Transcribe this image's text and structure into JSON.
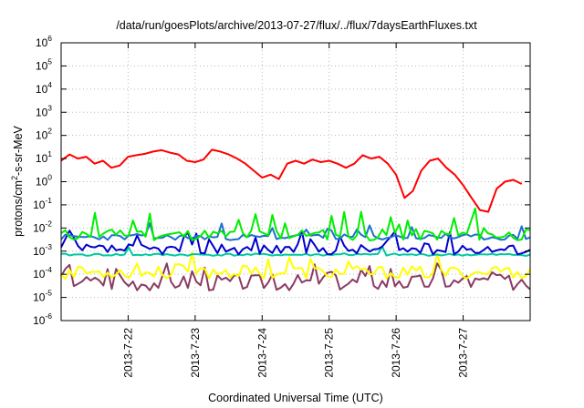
{
  "chart_data": {
    "type": "line",
    "title": "/data/run/goesPlots/archive/2013-07-27/flux/../flux/7daysEarthFluxes.txt",
    "xlabel": "Coordinated Universal Time (UTC)",
    "ylabel": "protons/cm2-s-sr-MeV",
    "y_scale": "log",
    "ylim": [
      1e-06,
      1000000.0
    ],
    "y_ticks": [
      {
        "base": "10",
        "exp": "-6",
        "value": 1e-06
      },
      {
        "base": "10",
        "exp": "-5",
        "value": 1e-05
      },
      {
        "base": "10",
        "exp": "-4",
        "value": 0.0001
      },
      {
        "base": "10",
        "exp": "-3",
        "value": 0.001
      },
      {
        "base": "10",
        "exp": "-2",
        "value": 0.01
      },
      {
        "base": "10",
        "exp": "-1",
        "value": 0.1
      },
      {
        "base": "10",
        "exp": "0",
        "value": 1
      },
      {
        "base": "10",
        "exp": "1",
        "value": 10
      },
      {
        "base": "10",
        "exp": "2",
        "value": 100
      },
      {
        "base": "10",
        "exp": "3",
        "value": 1000
      },
      {
        "base": "10",
        "exp": "4",
        "value": 10000
      },
      {
        "base": "10",
        "exp": "5",
        "value": 100000
      },
      {
        "base": "10",
        "exp": "6",
        "value": 1000000
      }
    ],
    "xlim": [
      "2013-07-21 00:00",
      "2013-07-28 00:00"
    ],
    "x_ticks": [
      {
        "label": "2013-7-22",
        "value": "2013-07-22 00:00"
      },
      {
        "label": "2013-7-23",
        "value": "2013-07-23 00:00"
      },
      {
        "label": "2013-7-24",
        "value": "2013-07-24 00:00"
      },
      {
        "label": "2013-7-25",
        "value": "2013-07-25 00:00"
      },
      {
        "label": "2013-7-26",
        "value": "2013-07-26 00:00"
      },
      {
        "label": "2013-7-27",
        "value": "2013-07-27 00:00"
      }
    ],
    "grid": true,
    "legend": "none",
    "series": [
      {
        "color": "#ff0000",
        "values": [
          [
            "2013-07-21 00:00",
            8
          ],
          [
            "2013-07-21 03:00",
            15
          ],
          [
            "2013-07-21 06:00",
            10
          ],
          [
            "2013-07-21 09:00",
            12
          ],
          [
            "2013-07-21 12:00",
            6
          ],
          [
            "2013-07-21 15:00",
            8
          ],
          [
            "2013-07-21 18:00",
            4
          ],
          [
            "2013-07-21 21:00",
            5
          ],
          [
            "2013-07-22 00:00",
            12
          ],
          [
            "2013-07-22 03:00",
            14
          ],
          [
            "2013-07-22 06:00",
            16
          ],
          [
            "2013-07-22 09:00",
            20
          ],
          [
            "2013-07-22 12:00",
            23
          ],
          [
            "2013-07-22 15:00",
            18
          ],
          [
            "2013-07-22 18:00",
            15
          ],
          [
            "2013-07-22 21:00",
            8
          ],
          [
            "2013-07-23 00:00",
            7
          ],
          [
            "2013-07-23 03:00",
            9
          ],
          [
            "2013-07-23 06:00",
            24
          ],
          [
            "2013-07-23 09:00",
            20
          ],
          [
            "2013-07-23 12:00",
            15
          ],
          [
            "2013-07-23 15:00",
            10
          ],
          [
            "2013-07-23 18:00",
            6
          ],
          [
            "2013-07-23 21:00",
            3
          ],
          [
            "2013-07-24 00:00",
            1.5
          ],
          [
            "2013-07-24 03:00",
            2
          ],
          [
            "2013-07-24 06:00",
            1.3
          ],
          [
            "2013-07-24 09:00",
            6
          ],
          [
            "2013-07-24 12:00",
            8
          ],
          [
            "2013-07-24 15:00",
            6
          ],
          [
            "2013-07-24 18:00",
            9
          ],
          [
            "2013-07-24 21:00",
            7
          ],
          [
            "2013-07-25 00:00",
            8
          ],
          [
            "2013-07-25 03:00",
            6
          ],
          [
            "2013-07-25 06:00",
            4
          ],
          [
            "2013-07-25 09:00",
            6
          ],
          [
            "2013-07-25 12:00",
            14
          ],
          [
            "2013-07-25 15:00",
            10
          ],
          [
            "2013-07-25 18:00",
            12
          ],
          [
            "2013-07-25 21:00",
            6
          ],
          [
            "2013-07-26 00:00",
            2
          ],
          [
            "2013-07-26 03:00",
            0.2
          ],
          [
            "2013-07-26 06:00",
            0.4
          ],
          [
            "2013-07-26 09:00",
            3
          ],
          [
            "2013-07-26 12:00",
            8
          ],
          [
            "2013-07-26 15:00",
            10
          ],
          [
            "2013-07-26 18:00",
            4
          ],
          [
            "2013-07-26 21:00",
            2
          ],
          [
            "2013-07-27 00:00",
            0.7
          ],
          [
            "2013-07-27 03:00",
            0.2
          ],
          [
            "2013-07-27 06:00",
            0.06
          ],
          [
            "2013-07-27 09:00",
            0.05
          ],
          [
            "2013-07-27 12:00",
            0.5
          ],
          [
            "2013-07-27 15:00",
            1
          ],
          [
            "2013-07-27 18:00",
            1.2
          ],
          [
            "2013-07-27 21:00",
            0.8
          ]
        ]
      },
      {
        "color": "#00ee00",
        "values": []
      },
      {
        "color": "#1f6fd0",
        "values": []
      },
      {
        "color": "#0000cc",
        "values": []
      },
      {
        "color": "#00c8a0",
        "values": []
      },
      {
        "color": "#ffff00",
        "values": []
      },
      {
        "color": "#8b3a62",
        "values": []
      }
    ]
  }
}
